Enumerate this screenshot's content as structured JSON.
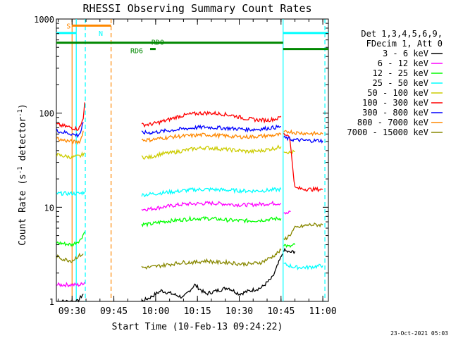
{
  "chart_data": {
    "type": "line",
    "title": "RHESSI Observing Summary Count Rates",
    "xlabel": "Start Time (10-Feb-13 09:24:22)",
    "ylabel_main": "Count Rate (s",
    "ylabel_sup1": "-1",
    "ylabel_mid": " detector",
    "ylabel_sup2": "-1",
    "ylabel_end": ")",
    "y_scale": "log",
    "ylim": [
      1,
      1000
    ],
    "xlim": [
      "09:24:22",
      "11:02:00"
    ],
    "y_ticks": [
      {
        "value": 1,
        "label": "1"
      },
      {
        "value": 10,
        "label": "10"
      },
      {
        "value": 100,
        "label": "100"
      },
      {
        "value": 1000,
        "label": "1000"
      }
    ],
    "x_ticks": [
      {
        "time": "09:30",
        "label": "09:30"
      },
      {
        "time": "09:45",
        "label": "09:45"
      },
      {
        "time": "10:00",
        "label": "10:00"
      },
      {
        "time": "10:15",
        "label": "10:15"
      },
      {
        "time": "10:30",
        "label": "10:30"
      },
      {
        "time": "10:45",
        "label": "10:45"
      },
      {
        "time": "11:00",
        "label": "11:00"
      }
    ],
    "legend": {
      "position": "right",
      "header": [
        "Det 1,3,4,5,6,9,",
        "FDecim 1, Att 0"
      ],
      "entries": [
        {
          "label": "3 - 6 keV",
          "color": "#000000"
        },
        {
          "label": "6 - 12 keV",
          "color": "#ff00ff"
        },
        {
          "label": "12 - 25 keV",
          "color": "#00ff00"
        },
        {
          "label": "25 - 50 keV",
          "color": "#00ffff"
        },
        {
          "label": "50 - 100 keV",
          "color": "#cccc00"
        },
        {
          "label": "100 - 300 keV",
          "color": "#ff0000"
        },
        {
          "label": "300 - 800 keV",
          "color": "#0000ff"
        },
        {
          "label": "800 - 7000 keV",
          "color": "#ff8800"
        },
        {
          "label": "7000 - 15000 keV",
          "color": "#888800"
        }
      ]
    },
    "series": [
      {
        "name": "3 - 6 keV",
        "color": "#000000",
        "segments": [
          {
            "x": [
              "09:24:30",
              "09:27:00",
              "09:30:00",
              "09:32:00",
              "09:34:00"
            ],
            "y": [
              1,
              1,
              1,
              1,
              1.2
            ]
          },
          {
            "x": [
              "09:55:00",
              "09:58:00",
              "10:02:00",
              "10:06:00",
              "10:10:00",
              "10:14:00",
              "10:18:00",
              "10:22:00",
              "10:26:00",
              "10:30:00",
              "10:34:00",
              "10:38:00",
              "10:42:00",
              "10:45:30"
            ],
            "y": [
              1,
              1.1,
              1.3,
              1.2,
              1.1,
              1.5,
              1.2,
              1.3,
              1.4,
              1.2,
              1.3,
              1.4,
              1.8,
              3.2
            ]
          },
          {
            "x": [
              "10:46:00",
              "10:48:00",
              "10:50:00"
            ],
            "y": [
              3.5,
              3.3,
              3.4
            ]
          }
        ]
      },
      {
        "name": "6 - 12 keV",
        "color": "#ff00ff",
        "segments": [
          {
            "x": [
              "09:24:30",
              "09:27:00",
              "09:30:00",
              "09:33:00",
              "09:34:30"
            ],
            "y": [
              1.5,
              1.5,
              1.5,
              1.5,
              1.6
            ]
          },
          {
            "x": [
              "09:55:00",
              "09:58:00",
              "10:02:00",
              "10:06:00",
              "10:10:00",
              "10:14:00",
              "10:18:00",
              "10:22:00",
              "10:26:00",
              "10:30:00",
              "10:34:00",
              "10:38:00",
              "10:42:00",
              "10:45:00"
            ],
            "y": [
              9.5,
              9.6,
              10,
              10.4,
              10.8,
              10.9,
              11,
              11,
              10.8,
              10.6,
              10.6,
              10.8,
              11,
              11
            ]
          },
          {
            "x": [
              "10:46:00",
              "10:47:00",
              "10:48:30"
            ],
            "y": [
              9,
              8.5,
              9
            ]
          }
        ]
      },
      {
        "name": "12 - 25 keV",
        "color": "#00ff00",
        "segments": [
          {
            "x": [
              "09:24:30",
              "09:27:00",
              "09:30:00",
              "09:33:00",
              "09:34:30"
            ],
            "y": [
              4.2,
              4.1,
              4.0,
              4.5,
              5.5
            ]
          },
          {
            "x": [
              "09:55:00",
              "09:58:00",
              "10:02:00",
              "10:06:00",
              "10:10:00",
              "10:14:00",
              "10:18:00",
              "10:22:00",
              "10:26:00",
              "10:30:00",
              "10:34:00",
              "10:38:00",
              "10:42:00",
              "10:45:00"
            ],
            "y": [
              6.6,
              6.6,
              7.0,
              7.2,
              7.4,
              7.6,
              7.6,
              7.5,
              7.3,
              7.2,
              7.2,
              7.3,
              7.5,
              7.6
            ]
          },
          {
            "x": [
              "10:46:00",
              "10:48:00",
              "10:50:00"
            ],
            "y": [
              4,
              3.8,
              4
            ]
          }
        ]
      },
      {
        "name": "25 - 50 keV",
        "color": "#00ffff",
        "segments": [
          {
            "x": [
              "09:24:30",
              "09:27:00",
              "09:30:00",
              "09:33:00",
              "09:34:30"
            ],
            "y": [
              14,
              14,
              14,
              14,
              14.5
            ]
          },
          {
            "x": [
              "09:55:00",
              "09:58:00",
              "10:02:00",
              "10:06:00",
              "10:10:00",
              "10:14:00",
              "10:18:00",
              "10:22:00",
              "10:26:00",
              "10:30:00",
              "10:34:00",
              "10:38:00",
              "10:42:00",
              "10:45:00"
            ],
            "y": [
              13.5,
              13.8,
              14.2,
              14.6,
              15,
              15.4,
              15.5,
              15.4,
              15.2,
              15,
              14.9,
              15,
              15.3,
              15.5
            ]
          },
          {
            "x": [
              "10:46:00",
              "10:50:00",
              "10:55:00",
              "11:00:00"
            ],
            "y": [
              2.5,
              2.3,
              2.3,
              2.4
            ]
          }
        ]
      },
      {
        "name": "50 - 100 keV",
        "color": "#cccc00",
        "segments": [
          {
            "x": [
              "09:24:30",
              "09:27:00",
              "09:30:00",
              "09:33:00",
              "09:34:30"
            ],
            "y": [
              36,
              35,
              34,
              35,
              38
            ]
          },
          {
            "x": [
              "09:55:00",
              "09:58:00",
              "10:02:00",
              "10:06:00",
              "10:10:00",
              "10:14:00",
              "10:18:00",
              "10:22:00",
              "10:26:00",
              "10:30:00",
              "10:34:00",
              "10:38:00",
              "10:42:00",
              "10:45:00"
            ],
            "y": [
              34,
              34,
              37,
              38,
              40,
              42,
              43,
              42,
              41,
              40,
              39,
              40,
              42,
              44
            ]
          },
          {
            "x": [
              "10:46:00",
              "10:48:00",
              "10:50:00"
            ],
            "y": [
              40,
              38,
              39
            ]
          }
        ]
      },
      {
        "name": "100 - 300 keV",
        "color": "#ff0000",
        "segments": [
          {
            "x": [
              "09:24:30",
              "09:26:00",
              "09:28:00",
              "09:30:00",
              "09:32:00",
              "09:33:00",
              "09:34:00",
              "09:34:30"
            ],
            "y": [
              76,
              74,
              72,
              70,
              68,
              72,
              90,
              130
            ]
          },
          {
            "x": [
              "09:55:00",
              "09:58:00",
              "10:00:00",
              "10:04:00",
              "10:08:00",
              "10:12:00",
              "10:16:00",
              "10:20:00",
              "10:24:00",
              "10:28:00",
              "10:32:00",
              "10:36:00",
              "10:40:00",
              "10:44:00",
              "10:45:00"
            ],
            "y": [
              75,
              76,
              78,
              84,
              92,
              97,
              100,
              100,
              98,
              94,
              88,
              85,
              84,
              88,
              93
            ]
          },
          {
            "x": [
              "10:46:00",
              "10:48:00",
              "10:50:00",
              "10:55:00",
              "11:00:00"
            ],
            "y": [
              60,
              58,
              16,
              15.5,
              15.5
            ]
          }
        ]
      },
      {
        "name": "300 - 800 keV",
        "color": "#0000ff",
        "segments": [
          {
            "x": [
              "09:24:30",
              "09:26:00",
              "09:28:00",
              "09:30:00",
              "09:32:00",
              "09:33:00",
              "09:34:00"
            ],
            "y": [
              66,
              63,
              62,
              60,
              58,
              62,
              80
            ]
          },
          {
            "x": [
              "09:55:00",
              "09:58:00",
              "10:02:00",
              "10:06:00",
              "10:10:00",
              "10:14:00",
              "10:18:00",
              "10:22:00",
              "10:26:00",
              "10:30:00",
              "10:34:00",
              "10:38:00",
              "10:42:00",
              "10:45:00"
            ],
            "y": [
              62,
              62,
              64,
              66,
              68,
              70,
              71,
              70,
              69,
              68,
              67,
              68,
              70,
              72
            ]
          },
          {
            "x": [
              "10:46:00",
              "10:48:00",
              "10:50:00",
              "10:55:00",
              "11:00:00"
            ],
            "y": [
              55,
              53,
              52,
              51,
              51
            ]
          }
        ]
      },
      {
        "name": "800 - 7000 keV",
        "color": "#ff8800",
        "segments": [
          {
            "x": [
              "09:24:30",
              "09:26:00",
              "09:28:00",
              "09:30:00",
              "09:32:00",
              "09:33:00",
              "09:34:00"
            ],
            "y": [
              54,
              52,
              51,
              50,
              49,
              51,
              65
            ]
          },
          {
            "x": [
              "09:55:00",
              "09:58:00",
              "10:02:00",
              "10:06:00",
              "10:10:00",
              "10:14:00",
              "10:18:00",
              "10:22:00",
              "10:26:00",
              "10:30:00",
              "10:34:00",
              "10:38:00",
              "10:42:00",
              "10:45:00"
            ],
            "y": [
              52,
              52,
              54,
              56,
              57,
              58,
              59,
              58,
              57,
              56,
              56,
              57,
              58,
              59
            ]
          },
          {
            "x": [
              "10:46:00",
              "10:48:00",
              "10:50:00",
              "10:55:00",
              "11:00:00"
            ],
            "y": [
              62,
              64,
              62,
              61,
              60
            ]
          }
        ]
      },
      {
        "name": "7000 - 15000 keV",
        "color": "#888800",
        "segments": [
          {
            "x": [
              "09:24:30",
              "09:27:00",
              "09:30:00",
              "09:32:00",
              "09:34:00"
            ],
            "y": [
              3.0,
              2.8,
              2.7,
              3.0,
              3.2
            ]
          },
          {
            "x": [
              "09:55:00",
              "09:58:00",
              "10:02:00",
              "10:06:00",
              "10:10:00",
              "10:14:00",
              "10:18:00",
              "10:22:00",
              "10:26:00",
              "10:30:00",
              "10:34:00",
              "10:38:00",
              "10:42:00",
              "10:45:00"
            ],
            "y": [
              2.3,
              2.3,
              2.4,
              2.5,
              2.6,
              2.6,
              2.7,
              2.6,
              2.6,
              2.5,
              2.5,
              2.6,
              3.0,
              3.5
            ]
          },
          {
            "x": [
              "10:46:00",
              "10:48:00",
              "10:50:00",
              "10:55:00",
              "11:00:00"
            ],
            "y": [
              4.5,
              5,
              6,
              6.5,
              6.5
            ]
          }
        ]
      }
    ],
    "night_boundaries": [
      {
        "time": "09:31:30",
        "color": "#00ffff",
        "style": "solid"
      },
      {
        "time": "10:45:45",
        "color": "#00ffff",
        "style": "solid"
      },
      {
        "time": "09:34:45",
        "color": "#00ffff",
        "style": "dashed"
      },
      {
        "time": "11:00:45",
        "color": "#00ffff",
        "style": "dashed"
      }
    ],
    "saa_boundaries": [
      {
        "time": "09:30:00",
        "color": "#ff8800",
        "style": "solid"
      },
      {
        "time": "09:44:00",
        "color": "#ff8800",
        "style": "dashed"
      }
    ],
    "flag_bars": [
      {
        "label": "S",
        "color": "#ff8800",
        "y": 850,
        "x": [
          "09:30:00",
          "09:44:00"
        ]
      },
      {
        "label": "N",
        "color": "#00ffff",
        "y": 710,
        "x": [
          "09:24:22",
          "09:31:30"
        ]
      },
      {
        "label": "",
        "color": "#00ffff",
        "y": 710,
        "x": [
          "10:45:45",
          "11:02:00"
        ]
      },
      {
        "label": "RD0",
        "color": "#008800",
        "y": 560,
        "x": [
          "09:24:22",
          "10:45:45"
        ]
      },
      {
        "label": "RD6",
        "color": "#008800",
        "y": 480,
        "x": [
          "09:58:00",
          "10:00:00"
        ]
      },
      {
        "label": "",
        "color": "#008800",
        "y": 480,
        "x": [
          "10:45:45",
          "11:02:00"
        ]
      }
    ]
  },
  "timestamp": "23-Oct-2021 05:03"
}
